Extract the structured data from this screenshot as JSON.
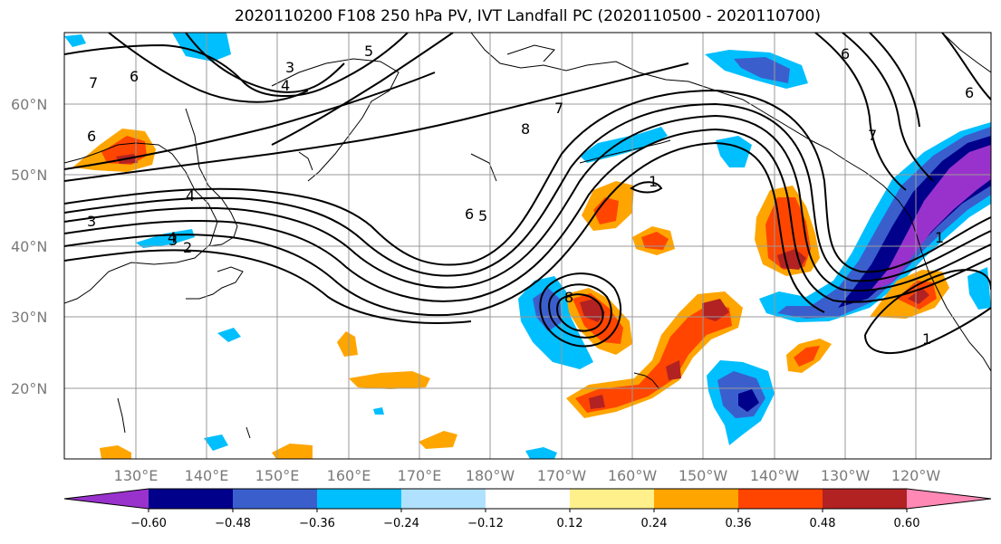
{
  "title": "2020110200 F108 250 hPa PV, IVT Landfall PC (2020110500 - 2020110700)",
  "lat_labels": [
    "60°N",
    "50°N",
    "40°N",
    "30°N",
    "20°N"
  ],
  "lon_labels": [
    "130°E",
    "140°E",
    "150°E",
    "160°E",
    "170°E",
    "180°W",
    "170°W",
    "160°W",
    "150°W",
    "140°W",
    "130°W",
    "120°W"
  ],
  "colorbar": {
    "colors": [
      "#9932cc",
      "#00008b",
      "#3a5fcd",
      "#00bfff",
      "#b0e2ff",
      "#ffffff",
      "#fff08c",
      "#ffa500",
      "#ff4500",
      "#b22222",
      "#ff88b5"
    ],
    "tick_labels": [
      "−0.60",
      "−0.48",
      "−0.36",
      "−0.24",
      "−0.12",
      "0.12",
      "0.24",
      "0.36",
      "0.48",
      "0.60"
    ]
  },
  "contour_labels": [
    "6",
    "3",
    "5",
    "4",
    "8",
    "7",
    "6",
    "4",
    "4",
    "3",
    "3",
    "2",
    "6",
    "5",
    "8",
    "7",
    "6",
    "1",
    "1",
    "1",
    "7",
    "6"
  ]
}
